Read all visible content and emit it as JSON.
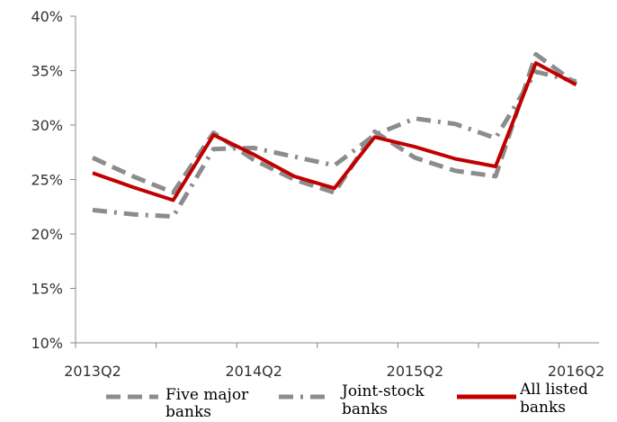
{
  "chart_data": {
    "type": "line",
    "title": "",
    "xlabel": "",
    "ylabel": "",
    "x": [
      "2013Q2",
      "2013Q3",
      "2013Q4",
      "2014Q1",
      "2014Q2",
      "2014Q3",
      "2014Q4",
      "2015Q1",
      "2015Q2",
      "2015Q3",
      "2015Q4",
      "2016Q1",
      "2016Q2"
    ],
    "x_tick_labels": [
      "2013Q2",
      "2014Q2",
      "2015Q2",
      "2016Q2"
    ],
    "y_ticks": [
      "10%",
      "15%",
      "20%",
      "25%",
      "30%",
      "35%",
      "40%"
    ],
    "ylim": [
      10,
      40
    ],
    "y_unit": "%",
    "grid": false,
    "legend_position": "bottom",
    "series": [
      {
        "name": "Five major banks",
        "values": [
          27.0,
          25.3,
          23.8,
          29.3,
          26.8,
          25.0,
          23.8,
          29.4,
          27.0,
          25.8,
          25.3,
          36.5,
          33.8
        ],
        "color": "#8c8c8c",
        "style": "dashed"
      },
      {
        "name": "Joint-stock banks",
        "values": [
          22.2,
          21.8,
          21.6,
          27.8,
          27.9,
          27.1,
          26.3,
          29.1,
          30.6,
          30.1,
          28.8,
          34.9,
          34.0
        ],
        "color": "#8c8c8c",
        "style": "dashdot"
      },
      {
        "name": "All listed banks",
        "values": [
          25.6,
          24.3,
          23.1,
          29.1,
          27.3,
          25.3,
          24.2,
          28.9,
          28.0,
          26.9,
          26.2,
          35.7,
          33.7
        ],
        "color": "#c00000",
        "style": "solid"
      }
    ]
  },
  "legend": {
    "items": [
      {
        "line1": "Five major",
        "line2": "banks"
      },
      {
        "line1": "Joint-stock",
        "line2": "banks"
      },
      {
        "line1": "All listed",
        "line2": "banks"
      }
    ]
  }
}
